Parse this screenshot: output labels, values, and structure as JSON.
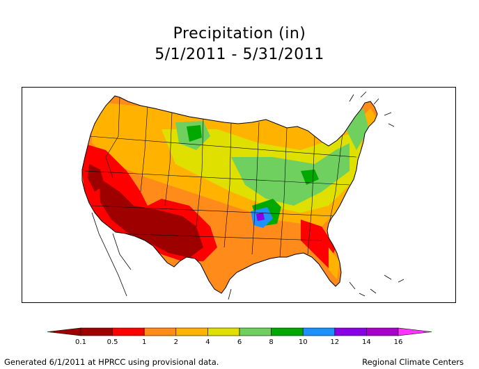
{
  "title": {
    "line1": "Precipitation (in)",
    "line2": "5/1/2011 - 5/31/2011"
  },
  "legend": {
    "colors": [
      "#9e0000",
      "#ff0000",
      "#ff8c1a",
      "#ffb300",
      "#e0e000",
      "#6fcf5f",
      "#00a800",
      "#1e90ff",
      "#8a00e6",
      "#a800c8"
    ],
    "low_color": "#9e0000",
    "high_color": "#ff33ff",
    "labels": [
      "0.1",
      "0.5",
      "1",
      "2",
      "4",
      "6",
      "8",
      "10",
      "12",
      "14",
      "16"
    ]
  },
  "footer": {
    "left": "Generated 6/1/2011 at HPRCC using provisional data.",
    "right": "Regional Climate Centers"
  }
}
